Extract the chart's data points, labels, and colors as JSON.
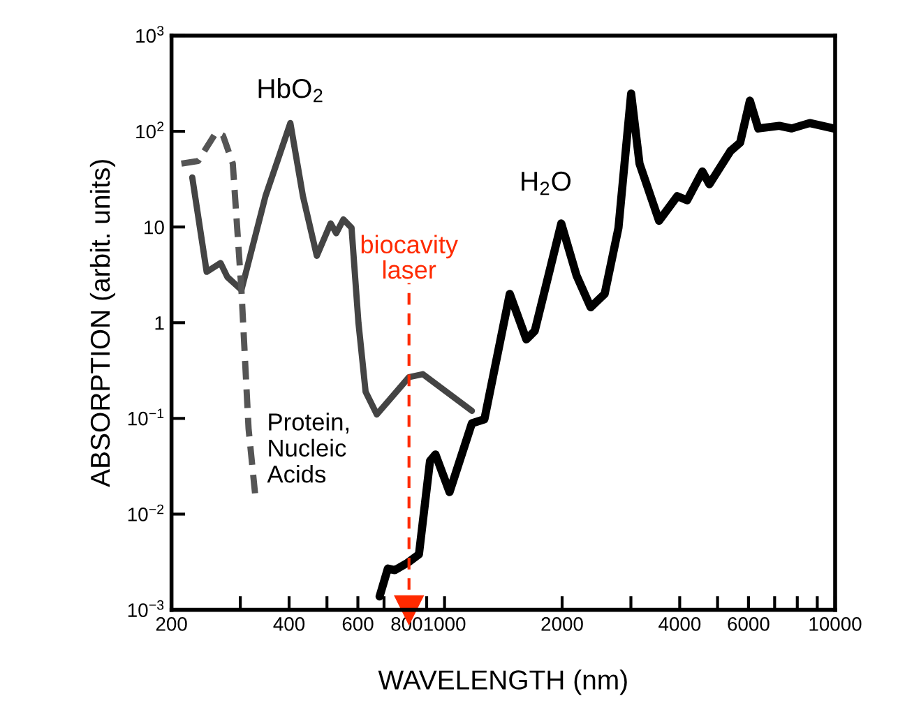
{
  "chart_data": {
    "type": "line",
    "xlabel": "WAVELENGTH (nm)",
    "ylabel": "ABSORPTION (arbit. units)",
    "log": "xy",
    "grid": false,
    "legend": false,
    "marker": "none",
    "xlim": [
      200,
      10000
    ],
    "xticks": [
      200,
      {
        "value": 300,
        "label": null
      },
      400,
      {
        "value": 500,
        "label": null
      },
      600,
      {
        "value": 700,
        "label": null
      },
      800,
      {
        "value": 900,
        "label": null
      },
      1000,
      2000,
      {
        "value": 3000,
        "label": null
      },
      4000,
      {
        "value": 5000,
        "label": null
      },
      6000,
      {
        "value": 7000,
        "label": null
      },
      {
        "value": 8000,
        "label": null
      },
      {
        "value": 9000,
        "label": null
      },
      10000
    ],
    "ylim": [
      0.001,
      1000
    ],
    "yticks": [
      {
        "value": 0.001,
        "label": "10$^{−3}$"
      },
      {
        "value": 0.01,
        "label": "10$^{−2}$"
      },
      {
        "value": 0.1,
        "label": "10$^{−1}$"
      },
      1,
      10,
      {
        "value": 100,
        "label": "10$^{2}$"
      },
      {
        "value": 1000,
        "label": "10$^{3}$"
      }
    ],
    "series": [
      {
        "color": "#444444",
        "line_style": "solid",
        "x": [
          226,
          246,
          267,
          278,
          302,
          348,
          403,
          434,
          471,
          511,
          528,
          551,
          578,
          602,
          628,
          671,
          811,
          880,
          1175
        ],
        "values": [
          33,
          3.4,
          4.2,
          3.0,
          2.2,
          21,
          122,
          21,
          5.0,
          10.9,
          8.6,
          12,
          9.8,
          1.0,
          0.19,
          0.11,
          0.27,
          0.29,
          0.12
        ]
      },
      {
        "color": "#555555",
        "line_style": "dashed",
        "x": [
          212,
          234,
          260,
          271,
          287,
          302,
          315,
          328
        ],
        "values": [
          46,
          49,
          97,
          90,
          46,
          2.2,
          0.078,
          0.015
        ]
      },
      {
        "color": "#000000",
        "line_style": "solid",
        "x": [
          682,
          716,
          746,
          804,
          860,
          918,
          948,
          1030,
          1175,
          1265,
          1469,
          1620,
          1702,
          1990,
          2178,
          2366,
          2570,
          2788,
          3004,
          3156,
          3542,
          3944,
          4178,
          4572,
          4766,
          5392,
          5712,
          6050,
          6356,
          7194,
          7740,
          8610,
          9910
        ],
        "values": [
          0.00138,
          0.0027,
          0.0026,
          0.0031,
          0.0038,
          0.036,
          0.042,
          0.017,
          0.089,
          0.098,
          2.0,
          0.67,
          0.82,
          10.9,
          3.1,
          1.45,
          2.0,
          9.8,
          248,
          46,
          11.6,
          21,
          19,
          38,
          28,
          62,
          76,
          209,
          107,
          114,
          107,
          122,
          107
        ]
      }
    ],
    "ref_lines": [
      {
        "axis": "x",
        "value": 811,
        "label": "biocavity\nlaser",
        "color": "#ff2a00",
        "line_style": "dashed"
      }
    ],
    "annotations": [
      {
        "text": "HbO$_{2}$",
        "x": 403,
        "y": 122
      },
      {
        "text": "H$_{2}$O",
        "x": 1990,
        "y": 10.9
      },
      {
        "text": "Protein,\nNucleic\nAcids",
        "x": 328,
        "y": 0.015
      }
    ]
  }
}
